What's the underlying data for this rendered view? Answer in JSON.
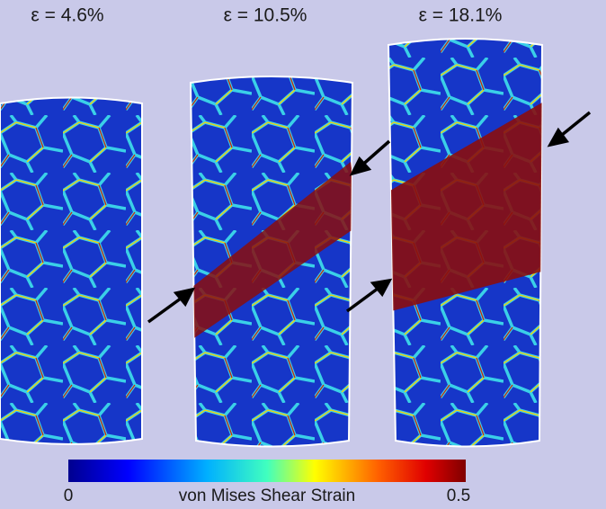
{
  "panels": [
    {
      "label": "ε = 4.6%"
    },
    {
      "label": "ε = 10.5%"
    },
    {
      "label": "ε = 18.1%"
    }
  ],
  "colorbar": {
    "min_label": "0",
    "max_label": "0.5",
    "title": "von Mises Shear Strain"
  }
}
